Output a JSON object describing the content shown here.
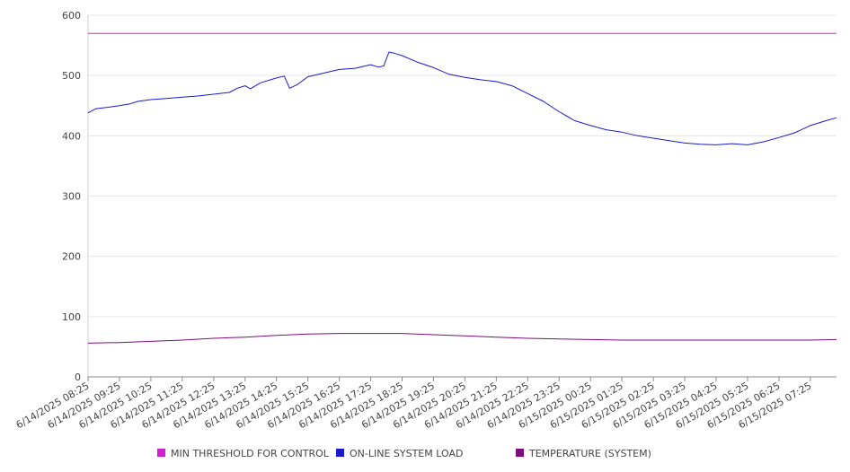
{
  "chart_data": {
    "type": "line",
    "title": "",
    "xlabel": "",
    "ylabel": "",
    "ylim": [
      0,
      600
    ],
    "y_ticks": [
      0,
      100,
      200,
      300,
      400,
      500,
      600
    ],
    "grid": "horizontal",
    "legend_position": "bottom",
    "x_tick_labels": [
      "6/14/2025 08:25",
      "6/14/2025 09:25",
      "6/14/2025 10:25",
      "6/14/2025 11:25",
      "6/14/2025 12:25",
      "6/14/2025 13:25",
      "6/14/2025 14:25",
      "6/14/2025 15:25",
      "6/14/2025 16:25",
      "6/14/2025 17:25",
      "6/14/2025 18:25",
      "6/14/2025 19:25",
      "6/14/2025 20:25",
      "6/14/2025 21:25",
      "6/14/2025 22:25",
      "6/14/2025 23:25",
      "6/15/2025 00:25",
      "6/15/2025 01:25",
      "6/15/2025 02:25",
      "6/15/2025 03:25",
      "6/15/2025 04:25",
      "6/15/2025 05:25",
      "6/15/2025 06:25",
      "6/15/2025 07:25"
    ],
    "x_end": "6/15/2025 08:15",
    "series": [
      {
        "name": "MIN THRESHOLD FOR CONTROL",
        "color": "#d21fd2",
        "x": [
          "6/14/2025 08:25",
          "6/15/2025 08:15"
        ],
        "values": [
          570,
          570
        ]
      },
      {
        "name": "ON-LINE SYSTEM LOAD",
        "color": "#1a1acc",
        "x": [
          "6/14/2025 08:25",
          "6/14/2025 08:40",
          "6/14/2025 09:00",
          "6/14/2025 09:25",
          "6/14/2025 09:45",
          "6/14/2025 10:00",
          "6/14/2025 10:25",
          "6/14/2025 10:55",
          "6/14/2025 11:25",
          "6/14/2025 11:55",
          "6/14/2025 12:25",
          "6/14/2025 12:55",
          "6/14/2025 13:10",
          "6/14/2025 13:25",
          "6/14/2025 13:35",
          "6/14/2025 13:55",
          "6/14/2025 14:25",
          "6/14/2025 14:40",
          "6/14/2025 14:50",
          "6/14/2025 15:05",
          "6/14/2025 15:25",
          "6/14/2025 15:55",
          "6/14/2025 16:25",
          "6/14/2025 16:55",
          "6/14/2025 17:25",
          "6/14/2025 17:40",
          "6/14/2025 17:50",
          "6/14/2025 18:00",
          "6/14/2025 18:10",
          "6/14/2025 18:25",
          "6/14/2025 18:55",
          "6/14/2025 19:25",
          "6/14/2025 19:55",
          "6/14/2025 20:25",
          "6/14/2025 20:55",
          "6/14/2025 21:25",
          "6/14/2025 21:55",
          "6/14/2025 22:25",
          "6/14/2025 22:55",
          "6/14/2025 23:25",
          "6/14/2025 23:55",
          "6/15/2025 00:25",
          "6/15/2025 00:55",
          "6/15/2025 01:25",
          "6/15/2025 01:55",
          "6/15/2025 02:25",
          "6/15/2025 02:55",
          "6/15/2025 03:25",
          "6/15/2025 03:55",
          "6/15/2025 04:25",
          "6/15/2025 04:55",
          "6/15/2025 05:25",
          "6/15/2025 05:55",
          "6/15/2025 06:25",
          "6/15/2025 06:55",
          "6/15/2025 07:25",
          "6/15/2025 07:55",
          "6/15/2025 08:15"
        ],
        "values": [
          438,
          445,
          447,
          450,
          453,
          457,
          460,
          462,
          464,
          466,
          469,
          472,
          479,
          483,
          478,
          488,
          496,
          499,
          479,
          485,
          498,
          504,
          510,
          512,
          518,
          514,
          516,
          539,
          537,
          533,
          522,
          513,
          502,
          497,
          493,
          490,
          483,
          470,
          457,
          440,
          425,
          417,
          410,
          406,
          400,
          396,
          392,
          388,
          386,
          385,
          387,
          385,
          390,
          397,
          405,
          417,
          425,
          430
        ]
      },
      {
        "name": "TEMPERATURE (SYSTEM)",
        "color": "#7d0d7d",
        "x": [
          "6/14/2025 08:25",
          "6/14/2025 09:25",
          "6/14/2025 10:25",
          "6/14/2025 11:25",
          "6/14/2025 12:25",
          "6/14/2025 13:25",
          "6/14/2025 14:25",
          "6/14/2025 15:25",
          "6/14/2025 16:25",
          "6/14/2025 17:25",
          "6/14/2025 18:25",
          "6/14/2025 19:25",
          "6/14/2025 20:25",
          "6/14/2025 21:25",
          "6/14/2025 22:25",
          "6/14/2025 23:25",
          "6/15/2025 00:25",
          "6/15/2025 01:25",
          "6/15/2025 02:25",
          "6/15/2025 03:25",
          "6/15/2025 04:25",
          "6/15/2025 05:25",
          "6/15/2025 06:25",
          "6/15/2025 07:25",
          "6/15/2025 08:15"
        ],
        "values": [
          56,
          57,
          59,
          61,
          64,
          66,
          69,
          71,
          72,
          72,
          72,
          70,
          68,
          66,
          64,
          63,
          62,
          61,
          61,
          61,
          61,
          61,
          61,
          61,
          62
        ]
      }
    ]
  }
}
